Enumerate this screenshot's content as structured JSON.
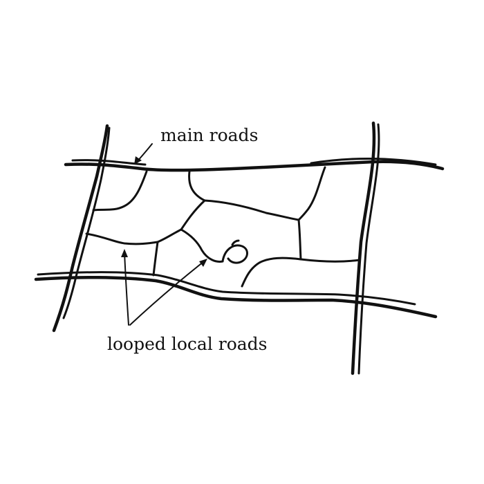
{
  "labels": {
    "main_roads": "main roads",
    "looped_local_roads": "looped local roads"
  },
  "colors": {
    "ink": "#111111",
    "paper": "#ffffff"
  }
}
